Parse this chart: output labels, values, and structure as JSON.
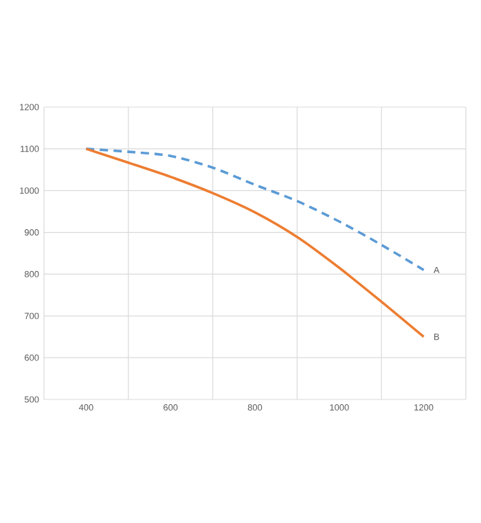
{
  "chart_data": {
    "type": "line",
    "x": [
      400,
      500,
      600,
      700,
      800,
      900,
      1000,
      1100,
      1200
    ],
    "series": [
      {
        "name": "A",
        "color": "#5b9bd5",
        "line_style": "dashed",
        "values": [
          1100,
          1093,
          1083,
          1055,
          1014,
          975,
          926,
          870,
          810
        ]
      },
      {
        "name": "B",
        "color": "#ed7d31",
        "line_style": "solid",
        "values": [
          1100,
          1067,
          1033,
          994,
          948,
          889,
          815,
          734,
          650
        ]
      }
    ],
    "xlim": [
      300,
      1300
    ],
    "ylim": [
      500,
      1200
    ],
    "xticks": [
      {
        "value": 300,
        "label": null
      },
      400,
      {
        "value": 500,
        "label": null
      },
      600,
      {
        "value": 700,
        "label": null
      },
      800,
      {
        "value": 900,
        "label": null
      },
      1000,
      {
        "value": 1100,
        "label": null
      },
      1200,
      {
        "value": 1300,
        "label": null
      }
    ],
    "yticks": [
      500,
      600,
      700,
      800,
      900,
      1000,
      1100,
      1200
    ],
    "grid": true
  }
}
